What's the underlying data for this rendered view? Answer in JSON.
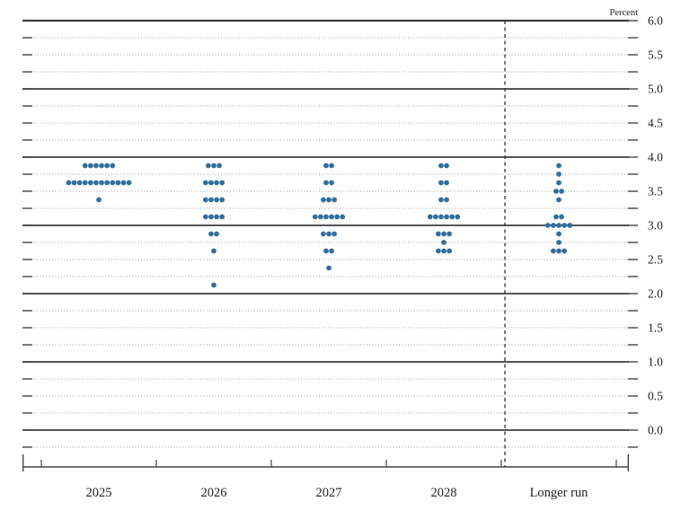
{
  "header": {
    "unit_label": "Percent"
  },
  "chart_data": {
    "type": "scatter",
    "subtype": "fomc-dot-plot",
    "unit_label": "Percent",
    "ylabel": "Percent",
    "ylim": [
      0.0,
      6.0
    ],
    "y_label_step": 0.5,
    "y_tick_step": 0.25,
    "y_tick_labels": [
      "6.0",
      "5.5",
      "5.0",
      "4.5",
      "4.0",
      "3.5",
      "3.0",
      "2.5",
      "2.0",
      "1.5",
      "1.0",
      "0.5",
      "0.0"
    ],
    "grid": {
      "solid_lines_at": "integer percent levels",
      "dotted_lines_at": "quarter percent levels",
      "legend": "none"
    },
    "categories": [
      "2025",
      "2026",
      "2027",
      "2028",
      "Longer run"
    ],
    "separator_before_category": "Longer run",
    "dot_color": "#2f6f9f",
    "axis_color": "#3d3d3d",
    "dotted_grid_color": "#9a9a9a",
    "text_color": "#222222",
    "series": [
      {
        "category": "2025",
        "total_dots": 19,
        "dots": [
          {
            "rate": 3.875,
            "count": 6
          },
          {
            "rate": 3.625,
            "count": 12
          },
          {
            "rate": 3.375,
            "count": 1
          }
        ]
      },
      {
        "category": "2026",
        "total_dots": 19,
        "dots": [
          {
            "rate": 3.875,
            "count": 3
          },
          {
            "rate": 3.625,
            "count": 4
          },
          {
            "rate": 3.375,
            "count": 4
          },
          {
            "rate": 3.125,
            "count": 4
          },
          {
            "rate": 2.875,
            "count": 2
          },
          {
            "rate": 2.625,
            "count": 1
          },
          {
            "rate": 2.125,
            "count": 1
          }
        ]
      },
      {
        "category": "2027",
        "total_dots": 19,
        "dots": [
          {
            "rate": 3.875,
            "count": 2
          },
          {
            "rate": 3.625,
            "count": 2
          },
          {
            "rate": 3.375,
            "count": 3
          },
          {
            "rate": 3.125,
            "count": 6
          },
          {
            "rate": 2.875,
            "count": 3
          },
          {
            "rate": 2.625,
            "count": 2
          },
          {
            "rate": 2.375,
            "count": 1
          }
        ]
      },
      {
        "category": "2028",
        "total_dots": 19,
        "dots": [
          {
            "rate": 3.875,
            "count": 2
          },
          {
            "rate": 3.625,
            "count": 2
          },
          {
            "rate": 3.375,
            "count": 2
          },
          {
            "rate": 3.125,
            "count": 6
          },
          {
            "rate": 2.875,
            "count": 3
          },
          {
            "rate": 2.75,
            "count": 1
          },
          {
            "rate": 2.625,
            "count": 3
          }
        ]
      },
      {
        "category": "Longer run",
        "total_dots": 18,
        "dots": [
          {
            "rate": 3.875,
            "count": 1
          },
          {
            "rate": 3.75,
            "count": 1
          },
          {
            "rate": 3.625,
            "count": 1
          },
          {
            "rate": 3.5,
            "count": 2
          },
          {
            "rate": 3.375,
            "count": 1
          },
          {
            "rate": 3.125,
            "count": 2
          },
          {
            "rate": 3.0,
            "count": 5
          },
          {
            "rate": 2.875,
            "count": 1
          },
          {
            "rate": 2.75,
            "count": 1
          },
          {
            "rate": 2.625,
            "count": 3
          }
        ]
      }
    ]
  }
}
